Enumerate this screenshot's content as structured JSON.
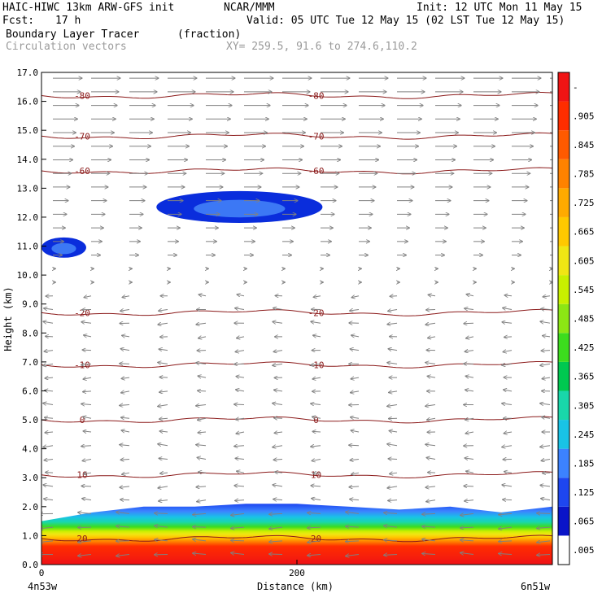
{
  "header": {
    "model": "HAIC-HIWC 13km ARW-GFS init",
    "org": "NCAR/MMM",
    "init": "Init: 12 UTC Mon 11 May 15",
    "fcst_label": "Fcst:",
    "fcst_value": "17 h",
    "valid": "Valid: 05 UTC Tue 12 May 15 (02 LST Tue 12 May 15)",
    "field_name": "Boundary Layer Tracer",
    "field_unit": "(fraction)",
    "vector_name": "Circulation vectors",
    "xy": "XY= 259.5, 91.6 to 274.6,110.2"
  },
  "chart_data": {
    "type": "heatmap",
    "title": "Boundary Layer Tracer (fraction)",
    "xlabel": "Distance (km)",
    "ylabel": "Height (km)",
    "xlim": [
      0,
      400
    ],
    "ylim": [
      0.0,
      17.0
    ],
    "x_ticks": [
      {
        "value": 0,
        "label": "0"
      },
      {
        "value": 200,
        "label": "200"
      }
    ],
    "x_end_labels": {
      "left": "4n53w",
      "right": "6n51w"
    },
    "y_ticks": [
      "0.0",
      "1.0",
      "2.0",
      "3.0",
      "4.0",
      "5.0",
      "6.0",
      "7.0",
      "8.0",
      "9.0",
      "10.0",
      "11.0",
      "12.0",
      "13.0",
      "14.0",
      "15.0",
      "16.0",
      "17.0"
    ],
    "colorbar": {
      "labels": [
        ".005",
        ".065",
        ".125",
        ".185",
        ".245",
        ".305",
        ".365",
        ".425",
        ".485",
        ".545",
        ".605",
        ".665",
        ".725",
        ".785",
        ".845",
        ".905",
        "-"
      ],
      "colors": [
        "#ffffff",
        "#0a14c8",
        "#1e46f0",
        "#3c82ff",
        "#19c3e6",
        "#19d7aa",
        "#00c850",
        "#3cdc1e",
        "#8ce614",
        "#c8f000",
        "#f0e614",
        "#ffc800",
        "#ffaa00",
        "#ff8200",
        "#ff5a00",
        "#ff2d00",
        "#f01414"
      ]
    },
    "temperature_contours": {
      "unit": "degC",
      "lines": [
        {
          "label": "20",
          "height": 0.9
        },
        {
          "label": "10",
          "height": 3.1
        },
        {
          "label": "0",
          "height": 5.0
        },
        {
          "label": "-10",
          "height": 6.9
        },
        {
          "label": "-20",
          "height": 8.7
        },
        {
          "label": "-60",
          "height": 13.6
        },
        {
          "label": "-70",
          "height": 14.8
        },
        {
          "label": "-80",
          "height": 16.2
        }
      ]
    },
    "tracer": {
      "boundary_layer_top_km": [
        1.5,
        1.8,
        2.0,
        2.0,
        2.1,
        2.1,
        2.0,
        1.9,
        2.0,
        1.8,
        2.0
      ],
      "upper_patches": [
        {
          "x_range_km": [
            90,
            220
          ],
          "z_range_km": [
            11.8,
            12.9
          ],
          "value": 0.065
        },
        {
          "x_range_km": [
            0,
            35
          ],
          "z_range_km": [
            10.6,
            11.3
          ],
          "value": 0.065
        }
      ]
    },
    "vectors": {
      "low_level_direction": "westward",
      "upper_level_direction": "eastward"
    }
  }
}
